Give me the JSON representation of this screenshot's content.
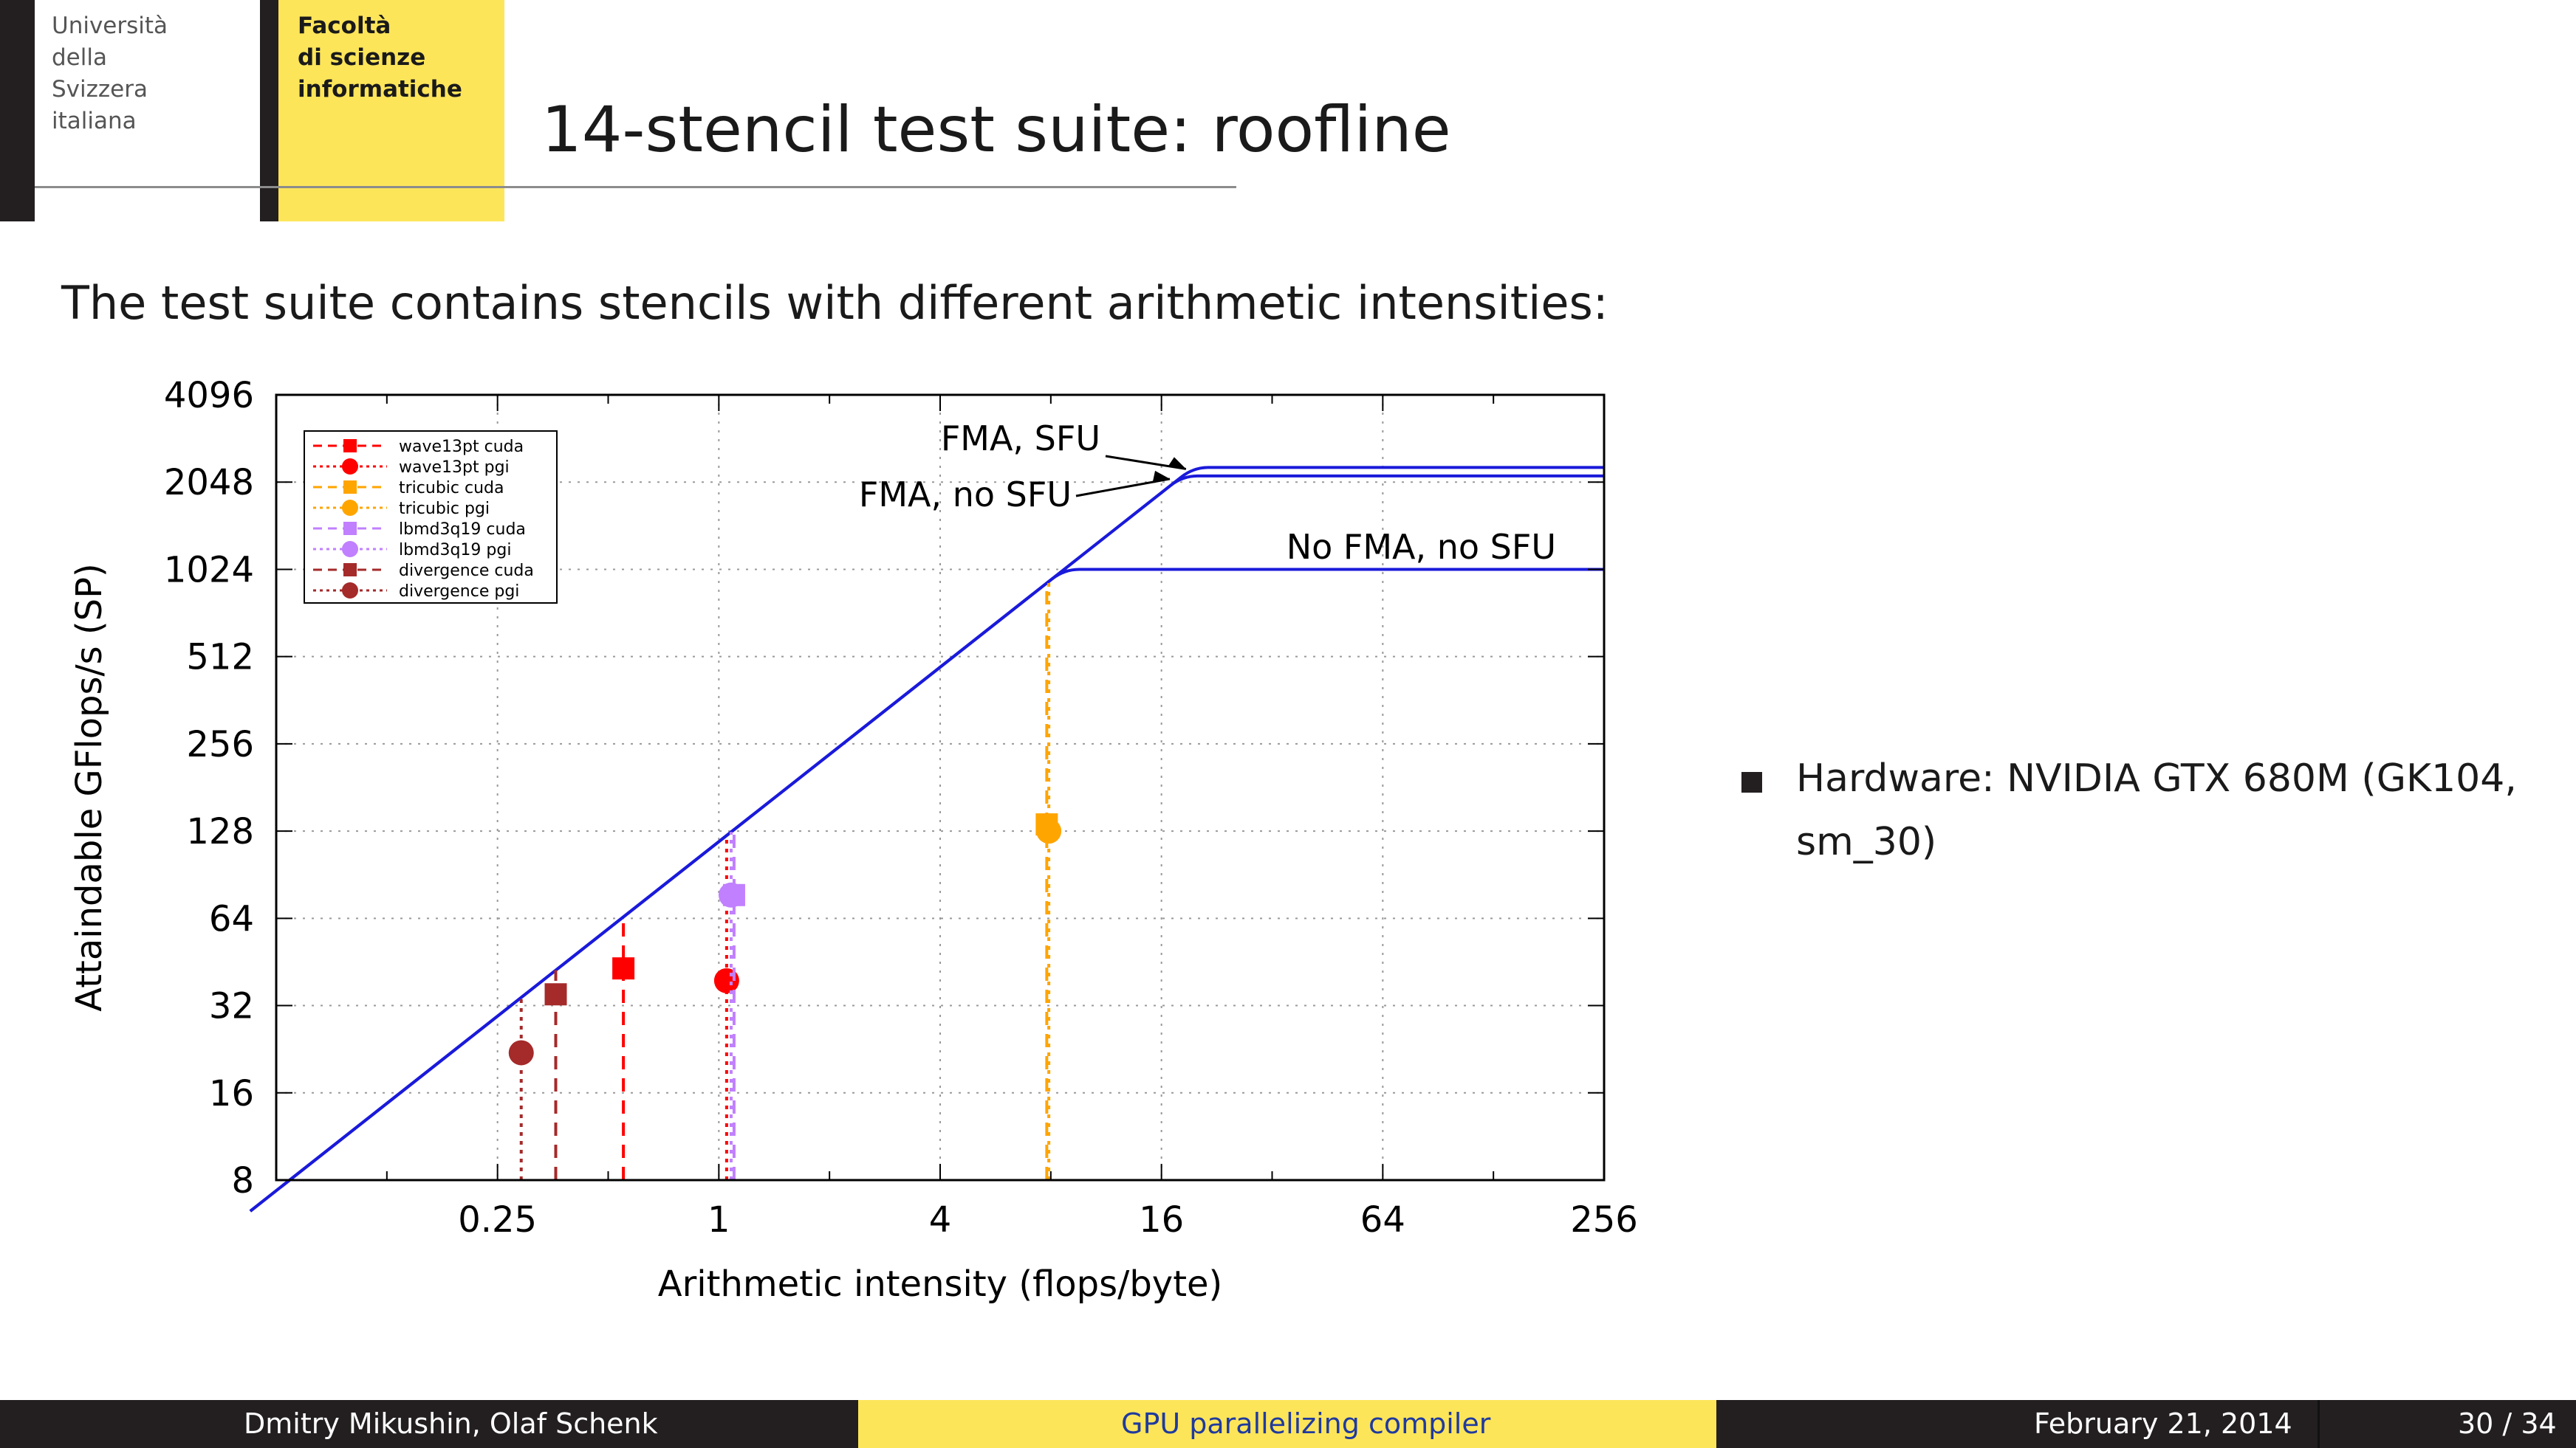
{
  "header": {
    "university_lines": [
      "Università",
      "della",
      "Svizzera",
      "italiana"
    ],
    "faculty_lines": [
      "Facoltà",
      "di scienze",
      "informatiche"
    ],
    "title": "14-stencil test suite: roofline"
  },
  "intro_text": "The test suite contains stencils with different arithmetic intensities:",
  "bullets": [
    {
      "icon": "square-bullet-icon",
      "text": "Hardware: NVIDIA GTX 680M (GK104, sm_30)"
    }
  ],
  "footer": {
    "authors": "Dmitry Mikushin, Olaf Schenk",
    "talk_title": "GPU parallelizing compiler",
    "date": "February 21, 2014",
    "page": "30 / 34"
  },
  "colors": {
    "accent_yellow": "#fde55a",
    "dark_bar": "#231f20",
    "roof_line": "#1a1adb",
    "footer_link": "#1f3a9e"
  },
  "chart_data": {
    "type": "scatter",
    "xlabel": "Arithmetic intensity (flops/byte)",
    "ylabel": "Attaindable GFlops/s (SP)",
    "x_scale": "log2",
    "y_scale": "log2",
    "xlim": [
      0.0625,
      256
    ],
    "ylim": [
      8,
      4096
    ],
    "x_ticks": [
      0.25,
      1,
      4,
      16,
      64,
      256
    ],
    "x_tick_labels": [
      "0.25",
      "1",
      "4",
      "16",
      "64",
      "256"
    ],
    "y_ticks": [
      8,
      16,
      32,
      64,
      128,
      256,
      512,
      1024,
      2048,
      4096
    ],
    "y_tick_labels": [
      "8",
      "16",
      "32",
      "64",
      "128",
      "256",
      "512",
      "1024",
      "2048",
      "4096"
    ],
    "grid": true,
    "legend_position": "top-left",
    "roofs": [
      {
        "label": "FMA, SFU",
        "ridge_x": 20,
        "peak": 2300
      },
      {
        "label": "FMA, no SFU",
        "ridge_x": 18.5,
        "peak": 2150
      },
      {
        "label": "No FMA, no SFU",
        "ridge_x": 8.7,
        "peak": 1024
      }
    ],
    "series": [
      {
        "name": "wave13pt cuda",
        "color": "#ff0000",
        "marker": "square",
        "line": "dashed",
        "x": 0.55,
        "y": 43
      },
      {
        "name": "wave13pt pgi",
        "color": "#ff0000",
        "marker": "circle",
        "line": "dotted",
        "x": 1.05,
        "y": 39
      },
      {
        "name": "tricubic cuda",
        "color": "#ffa500",
        "marker": "square",
        "line": "dashed",
        "x": 7.8,
        "y": 135
      },
      {
        "name": "tricubic pgi",
        "color": "#ffa500",
        "marker": "circle",
        "line": "dotted",
        "x": 7.9,
        "y": 128
      },
      {
        "name": "lbmd3q19 cuda",
        "color": "#c080ff",
        "marker": "square",
        "line": "dashed",
        "x": 1.1,
        "y": 77
      },
      {
        "name": "lbmd3q19 pgi",
        "color": "#c080ff",
        "marker": "circle",
        "line": "dotted",
        "x": 1.08,
        "y": 77
      },
      {
        "name": "divergence cuda",
        "color": "#a52a2a",
        "marker": "square",
        "line": "dashed",
        "x": 0.36,
        "y": 35
      },
      {
        "name": "divergence pgi",
        "color": "#a52a2a",
        "marker": "circle",
        "line": "dotted",
        "x": 0.29,
        "y": 22
      }
    ]
  }
}
